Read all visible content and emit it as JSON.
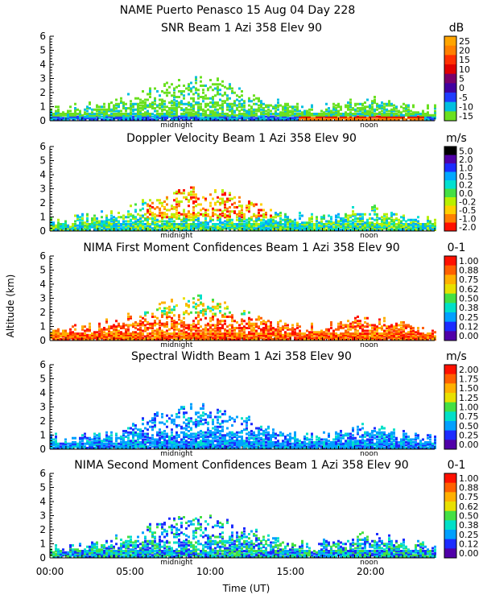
{
  "header": {
    "line1": "NAME Puerto Penasco  15 Aug 04 Day 228"
  },
  "axes": {
    "ylabel": "Altitude (km)",
    "xlabel": "Time (UT)",
    "yticks": [
      "0",
      "1",
      "2",
      "3",
      "4",
      "5",
      "6"
    ],
    "xticks": [
      {
        "label": "00:00",
        "hours": 0
      },
      {
        "label": "05:00",
        "hours": 5
      },
      {
        "label": "10:00",
        "hours": 10
      },
      {
        "label": "15:00",
        "hours": 15
      },
      {
        "label": "20:00",
        "hours": 20
      }
    ],
    "midnight_label": "midnight",
    "midnight_hours": 7.9,
    "noon_label": "noon",
    "noon_hours": 19.9,
    "x_range_hours": [
      0,
      24
    ],
    "y_range_km": [
      0,
      6
    ]
  },
  "chart_data": [
    {
      "type": "heatmap",
      "title": "SNR Beam 1 Azi 358 Elev 90",
      "unit": "dB",
      "colorbar_labels": [
        "25",
        "20",
        "15",
        "10",
        "5",
        "0",
        "-5",
        "-10",
        "-15"
      ],
      "colorbar_colors": [
        "#ffa500",
        "#ff7f00",
        "#ff3000",
        "#e00000",
        "#7a006a",
        "#4000a0",
        "#1f3cff",
        "#00bfe0",
        "#6ae020"
      ]
    },
    {
      "type": "heatmap",
      "title": "Doppler Velocity Beam 1 Azi 358 Elev 90",
      "unit": "m/s",
      "colorbar_labels": [
        "5.0",
        "2.0",
        "1.0",
        "0.5",
        "0.2",
        "0.0",
        "-0.2",
        "-0.5",
        "-1.0",
        "-2.0"
      ],
      "colorbar_colors": [
        "#000000",
        "#5000a8",
        "#1c2cff",
        "#00a8ff",
        "#00e0d0",
        "#44e044",
        "#b8f000",
        "#ffd000",
        "#ff8000",
        "#ff1000"
      ]
    },
    {
      "type": "heatmap",
      "title": "NIMA First Moment Confidences Beam 1 Azi 358 Elev 90",
      "unit": "0-1",
      "colorbar_labels": [
        "1.00",
        "0.88",
        "0.75",
        "0.62",
        "0.50",
        "0.38",
        "0.25",
        "0.12",
        "0.00"
      ],
      "colorbar_colors": [
        "#ff1000",
        "#ff6000",
        "#ffb000",
        "#e8e000",
        "#44e044",
        "#00e0c8",
        "#00a0ff",
        "#1c2cff",
        "#5000a8"
      ]
    },
    {
      "type": "heatmap",
      "title": "Spectral Width Beam 1 Azi 358 Elev 90",
      "unit": "m/s",
      "colorbar_labels": [
        "2.00",
        "1.75",
        "1.50",
        "1.25",
        "1.00",
        "0.75",
        "0.50",
        "0.25",
        "0.00"
      ],
      "colorbar_colors": [
        "#ff1000",
        "#ff6000",
        "#ffb000",
        "#e8e000",
        "#44e044",
        "#00e0c8",
        "#00a0ff",
        "#1c2cff",
        "#5000a8"
      ]
    },
    {
      "type": "heatmap",
      "title": "NIMA Second Moment Confidences Beam 1 Azi 358 Elev 90",
      "unit": "0-1",
      "colorbar_labels": [
        "1.00",
        "0.88",
        "0.75",
        "0.62",
        "0.50",
        "0.38",
        "0.25",
        "0.12",
        "0.00"
      ],
      "colorbar_colors": [
        "#ff1000",
        "#ff6000",
        "#ffb000",
        "#e8e000",
        "#44e044",
        "#00e0c8",
        "#00a0ff",
        "#1c2cff",
        "#5000a8"
      ]
    }
  ]
}
